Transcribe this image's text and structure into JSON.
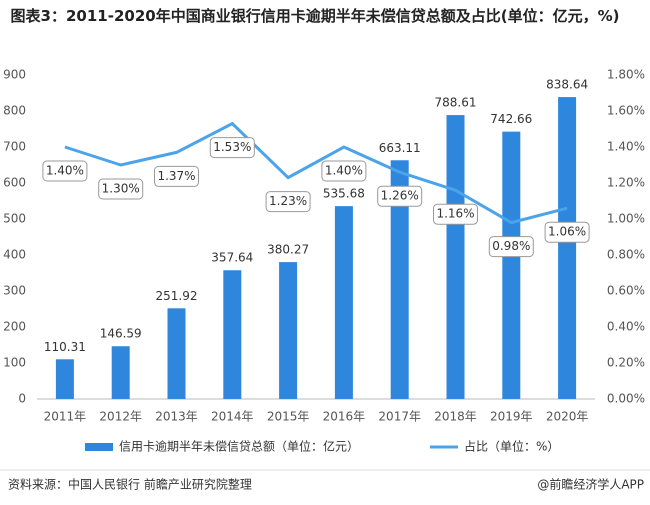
{
  "chart_data": {
    "type": "bar_line",
    "title": "图表3：2011-2020年中国商业银行信用卡逾期半年未偿信贷总额及占比(单位：亿元，%)",
    "categories": [
      "2011年",
      "2012年",
      "2013年",
      "2014年",
      "2015年",
      "2016年",
      "2017年",
      "2018年",
      "2019年",
      "2020年"
    ],
    "series": [
      {
        "name": "信用卡逾期半年未偿信贷总额（单位：亿元）",
        "color": "#2e87dc",
        "type": "bar",
        "values": [
          110.31,
          146.59,
          251.92,
          357.64,
          380.27,
          535.68,
          663.11,
          788.61,
          742.66,
          838.64
        ]
      },
      {
        "name": "占比（单位：%）",
        "color": "#4ba3ea",
        "type": "line",
        "axis": "y2",
        "values": [
          1.4,
          1.3,
          1.37,
          1.53,
          1.23,
          1.4,
          1.26,
          1.16,
          0.98,
          1.06
        ],
        "value_labels": [
          "1.40%",
          "1.30%",
          "1.37%",
          "1.53%",
          "1.23%",
          "1.40%",
          "1.26%",
          "1.16%",
          "0.98%",
          "1.06%"
        ]
      }
    ],
    "ylim": [
      0,
      900
    ],
    "yticks": [
      0,
      100,
      200,
      300,
      400,
      500,
      600,
      700,
      800,
      900
    ],
    "y2lim": [
      0,
      1.8
    ],
    "y2ticks": [
      {
        "value": 0,
        "label": "0.00%"
      },
      {
        "value": 0.2,
        "label": "0.20%"
      },
      {
        "value": 0.4,
        "label": "0.40%"
      },
      {
        "value": 0.6,
        "label": "0.60%"
      },
      {
        "value": 0.8,
        "label": "0.80%"
      },
      {
        "value": 1.0,
        "label": "1.00%"
      },
      {
        "value": 1.2,
        "label": "1.20%"
      },
      {
        "value": 1.4,
        "label": "1.40%"
      },
      {
        "value": 1.6,
        "label": "1.60%"
      },
      {
        "value": 1.8,
        "label": "1.80%"
      }
    ],
    "grid": false,
    "legend": "bottom",
    "source": "资料来源：中国人民银行 前瞻产业研究院整理",
    "credit": "@前瞻经济学人APP"
  }
}
